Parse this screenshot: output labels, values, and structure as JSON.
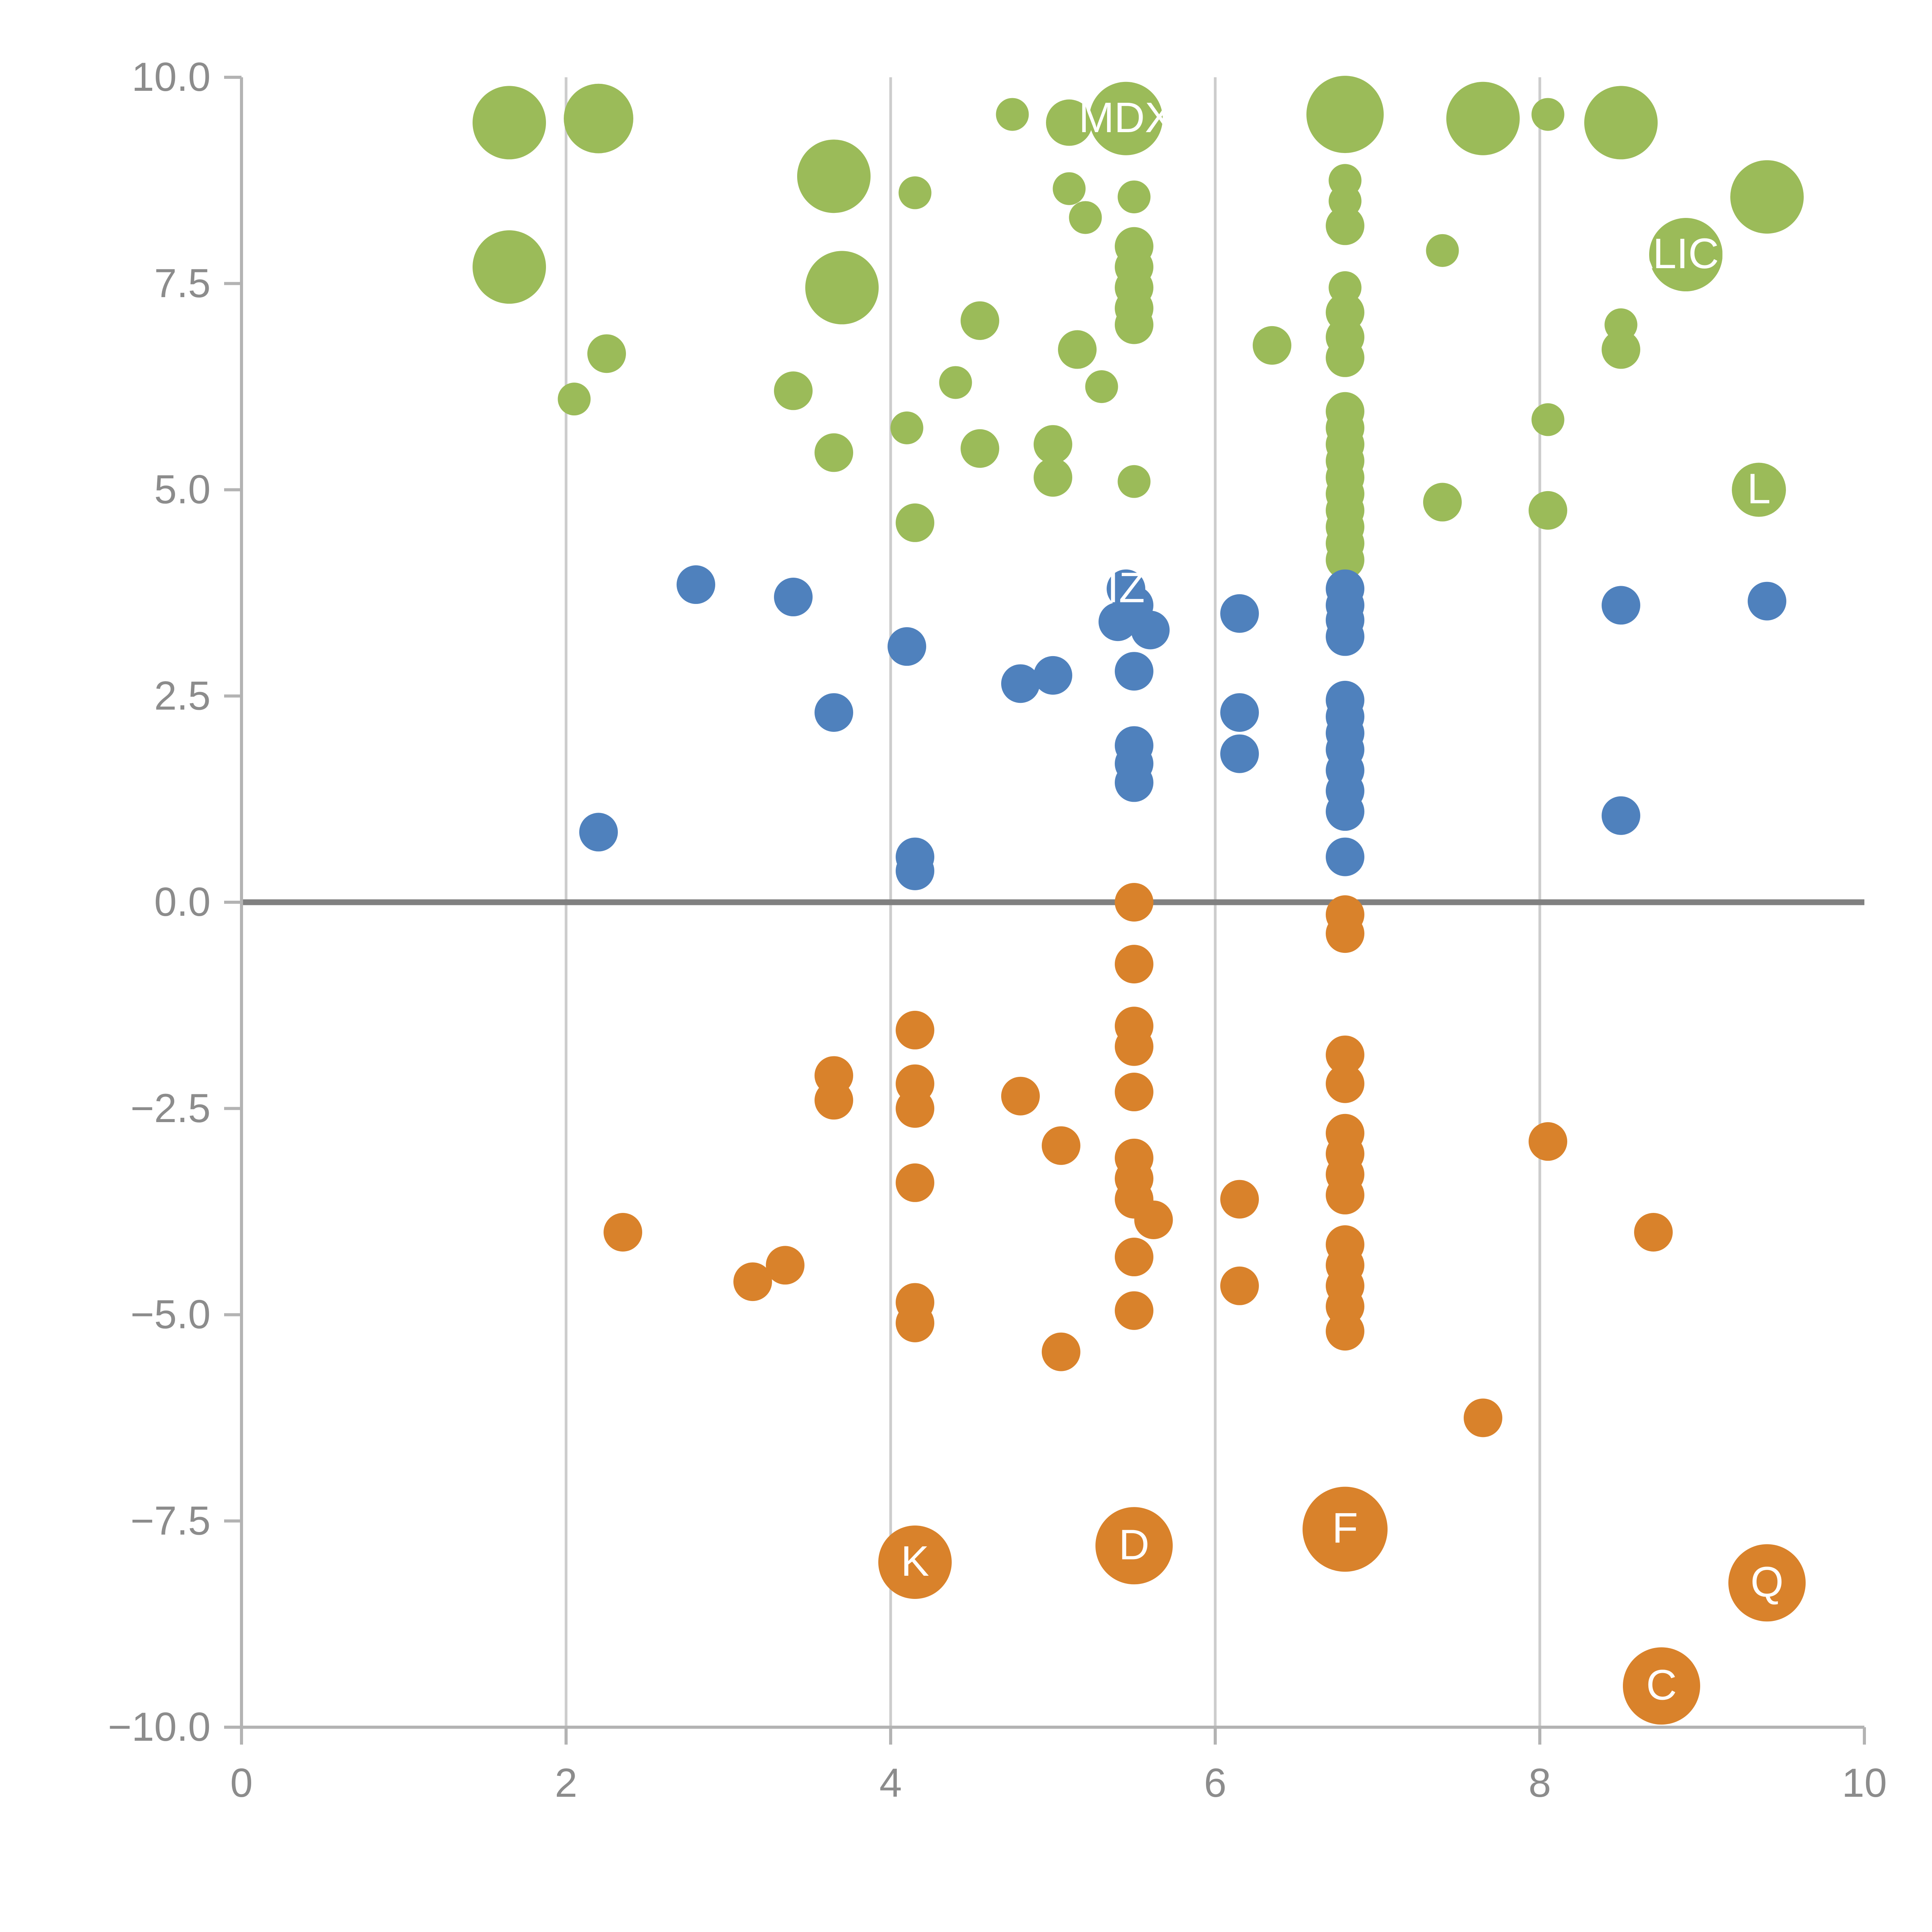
{
  "chart_data": {
    "type": "scatter",
    "title": "",
    "xlabel": "",
    "ylabel": "",
    "xlim": [
      0,
      10
    ],
    "ylim": [
      -10,
      10
    ],
    "x_tick_values": [
      0,
      2,
      4,
      6,
      8,
      10
    ],
    "x_tick_labels": [
      "0",
      "2",
      "4",
      "6",
      "8",
      "10"
    ],
    "y_tick_values": [
      -10,
      -7.5,
      -5,
      -2.5,
      0,
      2.5,
      5,
      7.5,
      10
    ],
    "y_tick_labels": [
      "−10.0",
      "−7.5",
      "−5.0",
      "−2.5",
      "0.0",
      "2.5",
      "5.0",
      "7.5",
      "10.0"
    ],
    "grid": {
      "vertical_at": [
        2,
        4,
        6,
        8
      ],
      "horizontal": false,
      "zero_line": true
    },
    "legend": "none",
    "style": {
      "background": "#ffffff",
      "axis_color": "#b3b3b3",
      "grid_color": "#cccccc",
      "zero_line_color": "#808080",
      "tick_label_color": "#8c8c8c",
      "point_label_color": "#ffffff"
    },
    "series": [
      {
        "name": "green",
        "color": "#9bbb59",
        "points": [
          {
            "x": 1.65,
            "y": 9.45,
            "r": 19
          },
          {
            "x": 2.2,
            "y": 9.5,
            "r": 18
          },
          {
            "x": 4.75,
            "y": 9.55,
            "r": 8.5
          },
          {
            "x": 5.1,
            "y": 9.45,
            "r": 12
          },
          {
            "x": 5.45,
            "y": 9.5,
            "r": 19,
            "label": "MDX"
          },
          {
            "x": 6.8,
            "y": 9.55,
            "r": 20
          },
          {
            "x": 7.65,
            "y": 9.5,
            "r": 19
          },
          {
            "x": 8.05,
            "y": 9.55,
            "r": 8.5
          },
          {
            "x": 8.5,
            "y": 9.45,
            "r": 19
          },
          {
            "x": 3.65,
            "y": 8.8,
            "r": 19
          },
          {
            "x": 4.15,
            "y": 8.6,
            "r": 8.5
          },
          {
            "x": 5.1,
            "y": 8.65,
            "r": 8.5
          },
          {
            "x": 5.2,
            "y": 8.3,
            "r": 8.5
          },
          {
            "x": 5.5,
            "y": 8.55,
            "r": 8.5
          },
          {
            "x": 6.8,
            "y": 8.75,
            "r": 8.5
          },
          {
            "x": 6.8,
            "y": 8.5,
            "r": 8.5
          },
          {
            "x": 6.8,
            "y": 8.2,
            "r": 10
          },
          {
            "x": 7.4,
            "y": 7.9,
            "r": 8.5
          },
          {
            "x": 9.4,
            "y": 8.55,
            "r": 19
          },
          {
            "x": 8.9,
            "y": 7.85,
            "r": 19,
            "label": "ALICE"
          },
          {
            "x": 1.65,
            "y": 7.7,
            "r": 19
          },
          {
            "x": 3.7,
            "y": 7.45,
            "r": 19
          },
          {
            "x": 5.5,
            "y": 7.95,
            "r": 10
          },
          {
            "x": 5.5,
            "y": 7.7,
            "r": 10
          },
          {
            "x": 5.5,
            "y": 7.45,
            "r": 10
          },
          {
            "x": 5.5,
            "y": 7.2,
            "r": 10
          },
          {
            "x": 5.5,
            "y": 7.0,
            "r": 10
          },
          {
            "x": 6.8,
            "y": 7.45,
            "r": 8.5
          },
          {
            "x": 6.8,
            "y": 7.15,
            "r": 10
          },
          {
            "x": 6.8,
            "y": 6.85,
            "r": 10
          },
          {
            "x": 6.8,
            "y": 6.6,
            "r": 10
          },
          {
            "x": 4.55,
            "y": 7.05,
            "r": 10
          },
          {
            "x": 5.15,
            "y": 6.7,
            "r": 10
          },
          {
            "x": 5.3,
            "y": 6.25,
            "r": 8.5
          },
          {
            "x": 6.35,
            "y": 6.75,
            "r": 10
          },
          {
            "x": 2.25,
            "y": 6.65,
            "r": 10
          },
          {
            "x": 2.05,
            "y": 6.1,
            "r": 8.5
          },
          {
            "x": 3.4,
            "y": 6.2,
            "r": 10
          },
          {
            "x": 4.4,
            "y": 6.3,
            "r": 8.5
          },
          {
            "x": 4.1,
            "y": 5.75,
            "r": 8.5
          },
          {
            "x": 4.55,
            "y": 5.5,
            "r": 10
          },
          {
            "x": 3.65,
            "y": 5.45,
            "r": 10
          },
          {
            "x": 5.0,
            "y": 5.55,
            "r": 10
          },
          {
            "x": 5.0,
            "y": 5.15,
            "r": 10
          },
          {
            "x": 5.5,
            "y": 5.1,
            "r": 8.5
          },
          {
            "x": 4.15,
            "y": 4.6,
            "r": 10
          },
          {
            "x": 6.8,
            "y": 5.95,
            "r": 10
          },
          {
            "x": 6.8,
            "y": 5.75,
            "r": 10
          },
          {
            "x": 6.8,
            "y": 5.55,
            "r": 10
          },
          {
            "x": 6.8,
            "y": 5.35,
            "r": 10
          },
          {
            "x": 6.8,
            "y": 5.15,
            "r": 10
          },
          {
            "x": 6.8,
            "y": 4.95,
            "r": 10
          },
          {
            "x": 6.8,
            "y": 4.75,
            "r": 10
          },
          {
            "x": 6.8,
            "y": 4.55,
            "r": 10
          },
          {
            "x": 6.8,
            "y": 4.35,
            "r": 10
          },
          {
            "x": 6.8,
            "y": 4.15,
            "r": 10
          },
          {
            "x": 7.4,
            "y": 4.85,
            "r": 10
          },
          {
            "x": 8.05,
            "y": 5.85,
            "r": 8.5
          },
          {
            "x": 8.05,
            "y": 4.75,
            "r": 10
          },
          {
            "x": 8.5,
            "y": 7.0,
            "r": 8.5
          },
          {
            "x": 8.5,
            "y": 6.7,
            "r": 10
          },
          {
            "x": 9.35,
            "y": 5.0,
            "r": 14,
            "label": "L"
          }
        ]
      },
      {
        "name": "blue",
        "color": "#4f81bd",
        "points": [
          {
            "x": 2.8,
            "y": 3.85,
            "r": 10
          },
          {
            "x": 3.4,
            "y": 3.7,
            "r": 10
          },
          {
            "x": 2.2,
            "y": 0.85,
            "r": 10
          },
          {
            "x": 3.65,
            "y": 2.3,
            "r": 10
          },
          {
            "x": 4.1,
            "y": 3.1,
            "r": 10
          },
          {
            "x": 4.15,
            "y": 0.55,
            "r": 10
          },
          {
            "x": 4.15,
            "y": 0.38,
            "r": 10
          },
          {
            "x": 4.8,
            "y": 2.65,
            "r": 10
          },
          {
            "x": 5.0,
            "y": 2.75,
            "r": 10
          },
          {
            "x": 5.45,
            "y": 3.8,
            "r": 10,
            "label": "IZ"
          },
          {
            "x": 5.5,
            "y": 3.6,
            "r": 10
          },
          {
            "x": 5.4,
            "y": 3.4,
            "r": 10
          },
          {
            "x": 5.6,
            "y": 3.3,
            "r": 10
          },
          {
            "x": 5.5,
            "y": 2.8,
            "r": 10
          },
          {
            "x": 5.5,
            "y": 1.9,
            "r": 10
          },
          {
            "x": 5.5,
            "y": 1.68,
            "r": 10
          },
          {
            "x": 5.5,
            "y": 1.45,
            "r": 10
          },
          {
            "x": 6.15,
            "y": 3.5,
            "r": 10
          },
          {
            "x": 6.15,
            "y": 2.3,
            "r": 10
          },
          {
            "x": 6.15,
            "y": 1.8,
            "r": 10
          },
          {
            "x": 6.8,
            "y": 3.8,
            "r": 10
          },
          {
            "x": 6.8,
            "y": 3.6,
            "r": 10
          },
          {
            "x": 6.8,
            "y": 3.42,
            "r": 10
          },
          {
            "x": 6.8,
            "y": 3.22,
            "r": 10
          },
          {
            "x": 6.8,
            "y": 2.45,
            "r": 10
          },
          {
            "x": 6.8,
            "y": 2.25,
            "r": 10
          },
          {
            "x": 6.8,
            "y": 2.05,
            "r": 10
          },
          {
            "x": 6.8,
            "y": 1.85,
            "r": 10
          },
          {
            "x": 6.8,
            "y": 1.6,
            "r": 10
          },
          {
            "x": 6.8,
            "y": 1.35,
            "r": 10
          },
          {
            "x": 6.8,
            "y": 1.1,
            "r": 10
          },
          {
            "x": 6.8,
            "y": 0.55,
            "r": 10
          },
          {
            "x": 8.5,
            "y": 3.6,
            "r": 10
          },
          {
            "x": 9.4,
            "y": 3.65,
            "r": 10
          },
          {
            "x": 8.5,
            "y": 1.05,
            "r": 10
          }
        ]
      },
      {
        "name": "orange",
        "color": "#d9822b",
        "points": [
          {
            "x": 5.5,
            "y": 0.0,
            "r": 10
          },
          {
            "x": 5.5,
            "y": -0.75,
            "r": 10
          },
          {
            "x": 6.8,
            "y": -0.15,
            "r": 10
          },
          {
            "x": 6.8,
            "y": -0.38,
            "r": 10
          },
          {
            "x": 4.15,
            "y": -1.55,
            "r": 10
          },
          {
            "x": 5.5,
            "y": -1.5,
            "r": 10
          },
          {
            "x": 5.5,
            "y": -1.75,
            "r": 10
          },
          {
            "x": 3.65,
            "y": -2.1,
            "r": 10
          },
          {
            "x": 3.65,
            "y": -2.4,
            "r": 10
          },
          {
            "x": 4.15,
            "y": -2.2,
            "r": 10
          },
          {
            "x": 4.15,
            "y": -2.5,
            "r": 10
          },
          {
            "x": 4.8,
            "y": -2.35,
            "r": 10
          },
          {
            "x": 5.5,
            "y": -2.3,
            "r": 10
          },
          {
            "x": 5.05,
            "y": -2.95,
            "r": 10
          },
          {
            "x": 5.5,
            "y": -3.1,
            "r": 10
          },
          {
            "x": 5.5,
            "y": -3.35,
            "r": 10
          },
          {
            "x": 5.5,
            "y": -3.6,
            "r": 10
          },
          {
            "x": 5.62,
            "y": -3.85,
            "r": 10
          },
          {
            "x": 4.15,
            "y": -3.4,
            "r": 10
          },
          {
            "x": 6.15,
            "y": -3.6,
            "r": 10
          },
          {
            "x": 5.5,
            "y": -4.3,
            "r": 10
          },
          {
            "x": 5.5,
            "y": -4.95,
            "r": 10
          },
          {
            "x": 6.8,
            "y": -1.85,
            "r": 10
          },
          {
            "x": 6.8,
            "y": -2.2,
            "r": 10
          },
          {
            "x": 6.8,
            "y": -2.8,
            "r": 10
          },
          {
            "x": 6.8,
            "y": -3.05,
            "r": 10
          },
          {
            "x": 6.8,
            "y": -3.3,
            "r": 10
          },
          {
            "x": 6.8,
            "y": -3.55,
            "r": 10
          },
          {
            "x": 6.8,
            "y": -4.15,
            "r": 10
          },
          {
            "x": 6.8,
            "y": -4.4,
            "r": 10
          },
          {
            "x": 6.8,
            "y": -4.65,
            "r": 10
          },
          {
            "x": 6.8,
            "y": -4.9,
            "r": 10
          },
          {
            "x": 6.8,
            "y": -5.2,
            "r": 10
          },
          {
            "x": 2.35,
            "y": -4.0,
            "r": 10
          },
          {
            "x": 3.15,
            "y": -4.6,
            "r": 10
          },
          {
            "x": 3.35,
            "y": -4.4,
            "r": 10
          },
          {
            "x": 4.15,
            "y": -4.85,
            "r": 10
          },
          {
            "x": 4.15,
            "y": -5.1,
            "r": 10
          },
          {
            "x": 5.05,
            "y": -5.45,
            "r": 10
          },
          {
            "x": 6.15,
            "y": -4.65,
            "r": 10
          },
          {
            "x": 8.05,
            "y": -2.9,
            "r": 10
          },
          {
            "x": 8.7,
            "y": -4.0,
            "r": 10
          },
          {
            "x": 7.65,
            "y": -6.25,
            "r": 10
          },
          {
            "x": 4.15,
            "y": -8.0,
            "r": 19,
            "label": "K"
          },
          {
            "x": 5.5,
            "y": -7.8,
            "r": 20,
            "label": "D"
          },
          {
            "x": 6.8,
            "y": -7.6,
            "r": 22,
            "label": "F"
          },
          {
            "x": 9.4,
            "y": -8.25,
            "r": 20,
            "label": "Q"
          },
          {
            "x": 8.75,
            "y": -9.5,
            "r": 20,
            "label": "C"
          }
        ]
      }
    ]
  }
}
